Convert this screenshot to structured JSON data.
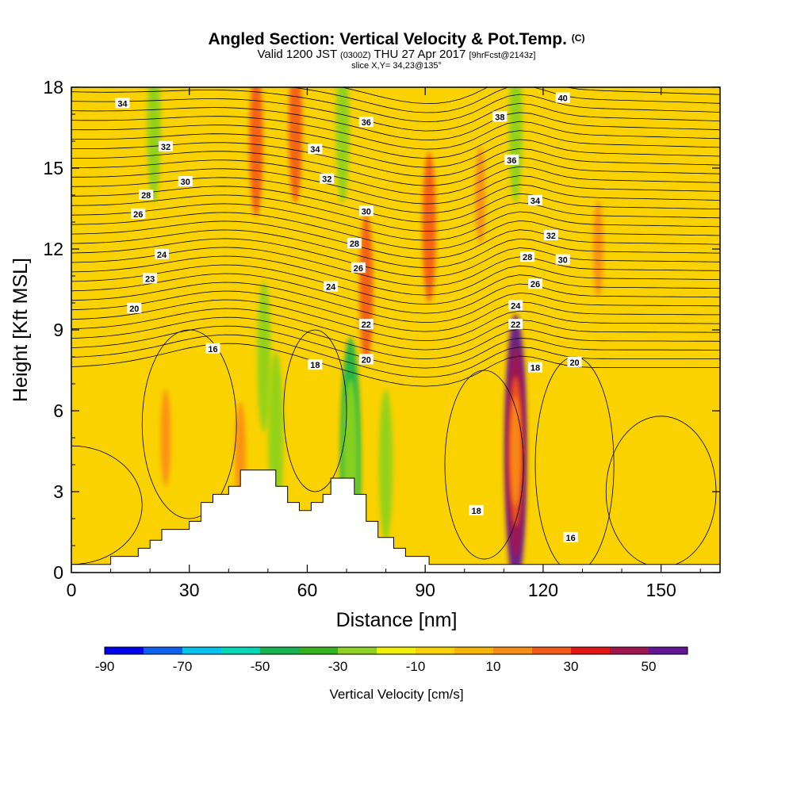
{
  "title": {
    "main": "Angled Section: Vertical Velocity & Pot.Temp.",
    "main_tag": "(C)",
    "valid_prefix": "Valid 1200 JST",
    "valid_utc": "(0300Z)",
    "valid_date": "THU 27 Apr 2017",
    "forecast": "[9hrFcst@2143z]",
    "slice": "slice X,Y= 34,23@135°"
  },
  "chart_data": {
    "type": "heatmap",
    "xlabel": "Distance [nm]",
    "ylabel": "Height [Kft MSL]",
    "xlim": [
      0,
      165
    ],
    "ylim": [
      0,
      18
    ],
    "x_ticks": [
      0,
      30,
      60,
      90,
      120,
      150
    ],
    "y_ticks": [
      0,
      3,
      6,
      9,
      12,
      15,
      18
    ],
    "field": "Vertical Velocity",
    "field_units": "cm/s",
    "contour_field": "Pot.Temp.",
    "colorbar": {
      "title": "Vertical Velocity [cm/s]",
      "levels": [
        -90,
        -80,
        -70,
        -60,
        -50,
        -40,
        -30,
        -20,
        -10,
        0,
        10,
        20,
        30,
        40,
        50,
        60
      ],
      "tick_labels": [
        "-90",
        "-70",
        "-50",
        "-30",
        "-10",
        "10",
        "30",
        "50"
      ],
      "tick_values": [
        -90,
        -70,
        -50,
        -30,
        -10,
        10,
        30,
        50
      ],
      "colors": [
        "#0000ee",
        "#0a60f0",
        "#00c4f0",
        "#00d8b8",
        "#14b450",
        "#32b41e",
        "#8cd21e",
        "#f0f000",
        "#fad200",
        "#fab400",
        "#fa8c14",
        "#f55a14",
        "#e61414",
        "#a01450",
        "#641496"
      ]
    },
    "background_level": "#fad200",
    "velocity_features": [
      {
        "kind": "updraft",
        "x": 113,
        "y": 4.5,
        "value": 55
      },
      {
        "kind": "updraft",
        "x": 113,
        "y": 4.5,
        "value": 40
      },
      {
        "kind": "updraft",
        "x": 113,
        "y": 4.5,
        "value": 25
      },
      {
        "kind": "updraft",
        "x": 113,
        "y": 4.5,
        "value": 15
      },
      {
        "kind": "updraft",
        "x": 47,
        "y": 16,
        "value": 25
      },
      {
        "kind": "updraft",
        "x": 57,
        "y": 16.5,
        "value": 25
      },
      {
        "kind": "updraft",
        "x": 91,
        "y": 12.8,
        "value": 25
      },
      {
        "kind": "updraft",
        "x": 75,
        "y": 10.5,
        "value": 25
      },
      {
        "kind": "updraft",
        "x": 43,
        "y": 4.3,
        "value": 15
      },
      {
        "kind": "updraft",
        "x": 104,
        "y": 14,
        "value": 12
      },
      {
        "kind": "updraft",
        "x": 134,
        "y": 12,
        "value": 12
      },
      {
        "kind": "updraft",
        "x": 24,
        "y": 5,
        "value": 12
      },
      {
        "kind": "downdraft",
        "x": 52,
        "y": 5,
        "value": -30
      },
      {
        "kind": "downdraft",
        "x": 71,
        "y": 4,
        "value": -50
      },
      {
        "kind": "downdraft",
        "x": 71,
        "y": 4,
        "value": -30
      },
      {
        "kind": "downdraft",
        "x": 69,
        "y": 16.5,
        "value": -25
      },
      {
        "kind": "downdraft",
        "x": 113,
        "y": 16.5,
        "value": -25
      },
      {
        "kind": "downdraft",
        "x": 21,
        "y": 16.5,
        "value": -25
      },
      {
        "kind": "downdraft",
        "x": 80,
        "y": 4,
        "value": -25
      },
      {
        "kind": "downdraft",
        "x": 49,
        "y": 8,
        "value": -25
      }
    ],
    "terrain": [
      [
        0,
        0.3
      ],
      [
        10,
        0.3
      ],
      [
        10,
        0.6
      ],
      [
        17,
        0.6
      ],
      [
        17,
        0.9
      ],
      [
        20,
        0.9
      ],
      [
        20,
        1.2
      ],
      [
        23,
        1.2
      ],
      [
        23,
        1.6
      ],
      [
        30,
        1.6
      ],
      [
        30,
        1.9
      ],
      [
        33,
        1.9
      ],
      [
        33,
        2.6
      ],
      [
        36,
        2.6
      ],
      [
        36,
        2.9
      ],
      [
        40,
        2.9
      ],
      [
        40,
        3.2
      ],
      [
        43,
        3.2
      ],
      [
        43,
        3.8
      ],
      [
        52,
        3.8
      ],
      [
        52,
        3.2
      ],
      [
        55,
        3.2
      ],
      [
        55,
        2.6
      ],
      [
        58,
        2.6
      ],
      [
        58,
        2.3
      ],
      [
        61,
        2.3
      ],
      [
        61,
        2.6
      ],
      [
        64,
        2.6
      ],
      [
        64,
        2.9
      ],
      [
        66,
        2.9
      ],
      [
        66,
        3.5
      ],
      [
        72,
        3.5
      ],
      [
        72,
        2.9
      ],
      [
        75,
        2.9
      ],
      [
        75,
        1.9
      ],
      [
        78,
        1.9
      ],
      [
        78,
        1.3
      ],
      [
        82,
        1.3
      ],
      [
        82,
        0.9
      ],
      [
        85,
        0.9
      ],
      [
        85,
        0.6
      ],
      [
        91,
        0.6
      ],
      [
        91,
        0.3
      ],
      [
        165,
        0.3
      ]
    ],
    "pot_temp_contour_labels": [
      {
        "text": "34",
        "x": 13,
        "y": 17.4
      },
      {
        "text": "32",
        "x": 24,
        "y": 15.8
      },
      {
        "text": "30",
        "x": 29,
        "y": 14.5
      },
      {
        "text": "28",
        "x": 19,
        "y": 14.0
      },
      {
        "text": "26",
        "x": 17,
        "y": 13.3
      },
      {
        "text": "24",
        "x": 23,
        "y": 11.8
      },
      {
        "text": "23",
        "x": 20,
        "y": 10.9
      },
      {
        "text": "20",
        "x": 16,
        "y": 9.8
      },
      {
        "text": "16",
        "x": 36,
        "y": 8.3
      },
      {
        "text": "18",
        "x": 62,
        "y": 7.7
      },
      {
        "text": "20",
        "x": 75,
        "y": 7.9
      },
      {
        "text": "34",
        "x": 62,
        "y": 15.7
      },
      {
        "text": "32",
        "x": 65,
        "y": 14.6
      },
      {
        "text": "36",
        "x": 75,
        "y": 16.7
      },
      {
        "text": "30",
        "x": 75,
        "y": 13.4
      },
      {
        "text": "28",
        "x": 72,
        "y": 12.2
      },
      {
        "text": "26",
        "x": 73,
        "y": 11.3
      },
      {
        "text": "24",
        "x": 66,
        "y": 10.6
      },
      {
        "text": "22",
        "x": 75,
        "y": 9.2
      },
      {
        "text": "40",
        "x": 125,
        "y": 17.6
      },
      {
        "text": "38",
        "x": 109,
        "y": 16.9
      },
      {
        "text": "36",
        "x": 112,
        "y": 15.3
      },
      {
        "text": "34",
        "x": 118,
        "y": 13.8
      },
      {
        "text": "32",
        "x": 122,
        "y": 12.5
      },
      {
        "text": "30",
        "x": 125,
        "y": 11.6
      },
      {
        "text": "28",
        "x": 116,
        "y": 11.7
      },
      {
        "text": "26",
        "x": 118,
        "y": 10.7
      },
      {
        "text": "24",
        "x": 113,
        "y": 9.9
      },
      {
        "text": "22",
        "x": 113,
        "y": 9.2
      },
      {
        "text": "18",
        "x": 118,
        "y": 7.6
      },
      {
        "text": "20",
        "x": 128,
        "y": 7.8
      },
      {
        "text": "18",
        "x": 103,
        "y": 2.3
      },
      {
        "text": "16",
        "x": 127,
        "y": 1.3
      }
    ]
  }
}
